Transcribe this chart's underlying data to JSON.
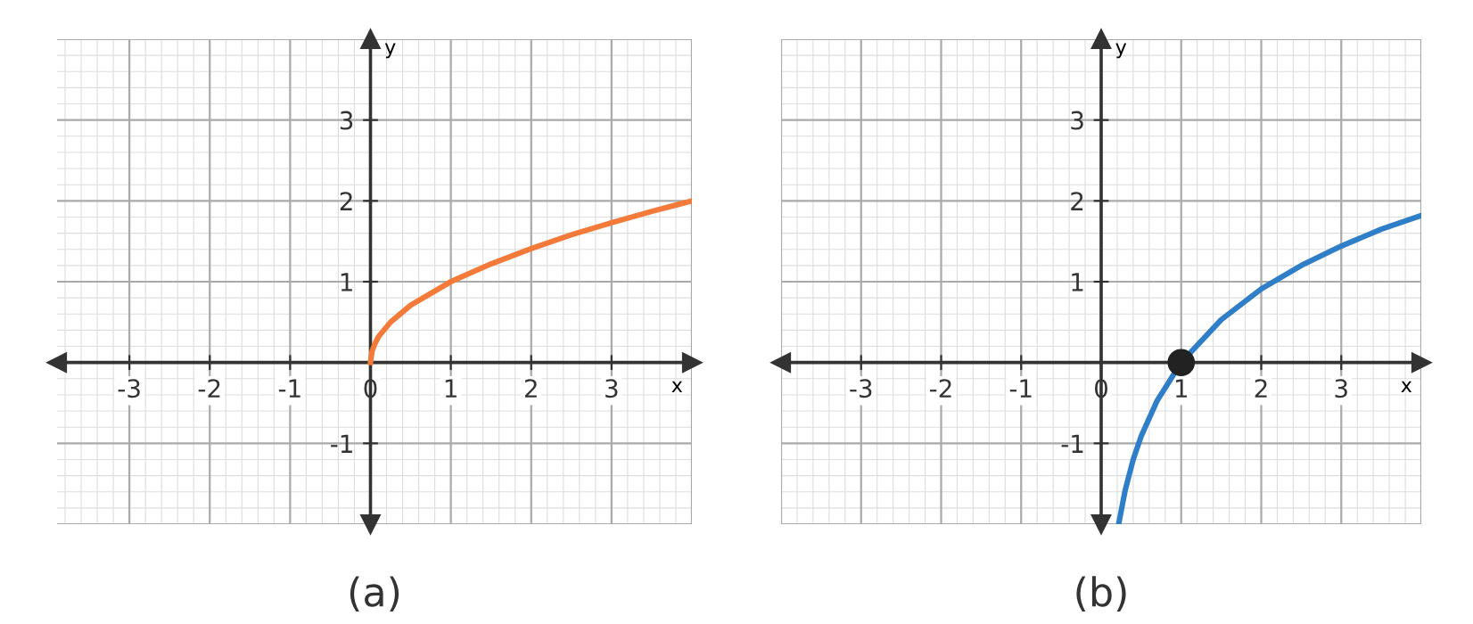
{
  "chart_data": [
    {
      "type": "line",
      "title": "(a)",
      "xlabel": "x",
      "ylabel": "y",
      "xlim": [
        -3.9,
        4
      ],
      "ylim": [
        -2,
        4
      ],
      "xticks": [
        -3,
        -2,
        -1,
        0,
        1,
        2,
        3
      ],
      "yticks": [
        -1,
        1,
        2,
        3
      ],
      "grid": true,
      "marker": "none",
      "line_style": "solid",
      "series": [
        {
          "color": "#f47a3a",
          "x": [
            0,
            0.02,
            0.05,
            0.1,
            0.25,
            0.5,
            1,
            1.5,
            2,
            2.5,
            3,
            3.5,
            4
          ],
          "values": [
            0,
            0.14,
            0.22,
            0.32,
            0.5,
            0.71,
            1,
            1.22,
            1.41,
            1.58,
            1.73,
            1.87,
            2.0
          ]
        }
      ]
    },
    {
      "type": "line",
      "title": "(b)",
      "xlabel": "x",
      "ylabel": "y",
      "xlim": [
        -4,
        4
      ],
      "ylim": [
        -2,
        4
      ],
      "xticks": [
        -3,
        -2,
        -1,
        0,
        1,
        2,
        3
      ],
      "yticks": [
        -1,
        1,
        2,
        3
      ],
      "grid": true,
      "marker": "none",
      "line_style": "solid",
      "series": [
        {
          "color": "#2f7fc8",
          "x": [
            0.22,
            0.3,
            0.4,
            0.5,
            0.7,
            1,
            1.5,
            2,
            2.5,
            3,
            3.5,
            4
          ],
          "values": [
            -1.99,
            -1.58,
            -1.2,
            -0.91,
            -0.47,
            0,
            0.53,
            0.91,
            1.2,
            1.44,
            1.65,
            1.82
          ]
        },
        {
          "type": "scatter",
          "color": "#222222",
          "marker": "circle",
          "x": [
            1
          ],
          "values": [
            0
          ]
        }
      ]
    }
  ]
}
